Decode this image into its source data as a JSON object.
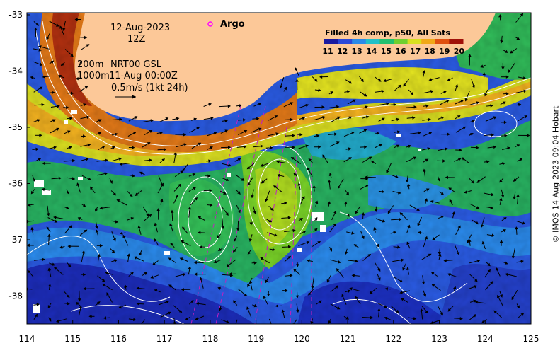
{
  "map": {
    "date": "12-Aug-2023",
    "time": "12Z",
    "depth_line1": "200m",
    "depth_line2": "1000m",
    "model_line1": "NRT00 GSL",
    "model_line2": "11-Aug 00:00Z",
    "vector_scale": "0.5m/s (1kt 24h)",
    "argo_label": "Argo",
    "colorbar_title": "Filled 4h comp, p50, All Sats",
    "colorbar_ticks": [
      "11",
      "12",
      "13",
      "14",
      "15",
      "16",
      "17",
      "18",
      "19",
      "20"
    ],
    "colorbar_colors": [
      "#1a1aa0",
      "#2a48d8",
      "#2a8ae8",
      "#22c0c8",
      "#22c070",
      "#70d030",
      "#d8e020",
      "#f0a818",
      "#e05010",
      "#a01008"
    ],
    "x_ticks": [
      "114",
      "115",
      "116",
      "117",
      "118",
      "119",
      "120",
      "121",
      "122",
      "123",
      "124",
      "125"
    ],
    "y_ticks": [
      "-33",
      "-34",
      "-35",
      "-36",
      "-37",
      "-38"
    ],
    "land_color": "#fcc898",
    "argo_color": "#ff00ff",
    "credit": "© IMOS 14-Aug-2023 09:04 Hobart"
  }
}
